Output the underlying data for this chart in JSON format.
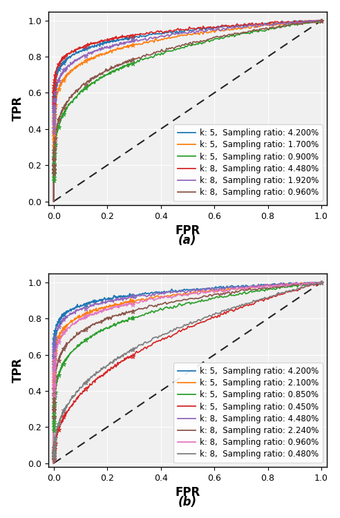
{
  "fig_width": 4.92,
  "fig_height": 7.5,
  "dpi": 100,
  "subplot_a": {
    "title": "(a)",
    "xlabel": "FPR",
    "ylabel": "TPR",
    "curves": [
      {
        "label": "k: 5,  Sampling ratio: 4.200%",
        "color": "#1f77b4",
        "power": 0.08
      },
      {
        "label": "k: 5,  Sampling ratio: 1.700%",
        "color": "#ff7f0e",
        "power": 0.12
      },
      {
        "label": "k: 5,  Sampling ratio: 0.900%",
        "color": "#2ca02c",
        "power": 0.22
      },
      {
        "label": "k: 8,  Sampling ratio: 4.480%",
        "color": "#d62728",
        "power": 0.07
      },
      {
        "label": "k: 8,  Sampling ratio: 1.920%",
        "color": "#9467bd",
        "power": 0.1
      },
      {
        "label": "k: 8,  Sampling ratio: 0.960%",
        "color": "#8c564b",
        "power": 0.2
      }
    ]
  },
  "subplot_b": {
    "title": "(b)",
    "xlabel": "FPR",
    "ylabel": "TPR",
    "curves": [
      {
        "label": "k: 5,  Sampling ratio: 4.200%",
        "color": "#1f77b4",
        "power": 0.06
      },
      {
        "label": "k: 5,  Sampling ratio: 2.100%",
        "color": "#ff7f0e",
        "power": 0.09
      },
      {
        "label": "k: 5,  Sampling ratio: 0.850%",
        "color": "#2ca02c",
        "power": 0.18
      },
      {
        "label": "k: 5,  Sampling ratio: 0.450%",
        "color": "#d62728",
        "power": 0.42
      },
      {
        "label": "k: 8,  Sampling ratio: 4.480%",
        "color": "#9467bd",
        "power": 0.07
      },
      {
        "label": "k: 8,  Sampling ratio: 2.240%",
        "color": "#8c564b",
        "power": 0.14
      },
      {
        "label": "k: 8,  Sampling ratio: 0.960%",
        "color": "#e377c2",
        "power": 0.1
      },
      {
        "label": "k: 8,  Sampling ratio: 0.480%",
        "color": "#7f7f7f",
        "power": 0.38
      }
    ]
  },
  "background_color": "#f0f0f0",
  "grid_color": "white",
  "legend_fontsize": 8.5,
  "axis_label_fontsize": 12,
  "tick_fontsize": 9,
  "noise_scale": 0.004,
  "n_points": 500
}
